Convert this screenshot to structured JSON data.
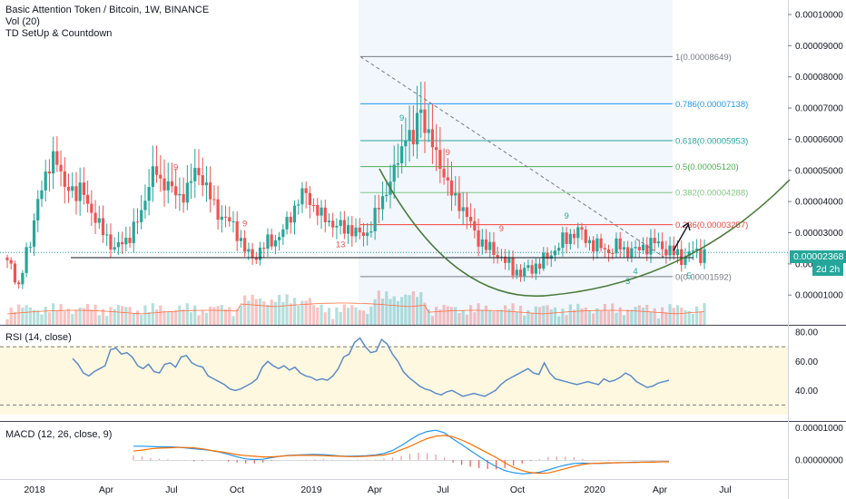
{
  "header": {
    "title": "Basic Attention Token / Bitcoin, 1W, BINANCE",
    "indicators": [
      "Vol (20)",
      "TD SetUp & Countdown"
    ]
  },
  "panes": {
    "rsi_label": "RSI (14, close)",
    "macd_label": "MACD (12, 26, close, 9)"
  },
  "price_badge": {
    "value": "0.00002368",
    "timer": "2d 2h"
  },
  "colors": {
    "up": "#26a69a",
    "down": "#ef5350",
    "fib_band": "#e3f2fd",
    "arc": "#4a7a3a"
  },
  "chart_data": [
    {
      "type": "candlestick",
      "title": "Basic Attention Token / Bitcoin, 1W, BINANCE",
      "xlabel": "",
      "ylabel": "",
      "x_ticks": [
        "2018",
        "Apr",
        "Jul",
        "Oct",
        "2019",
        "Apr",
        "Jul",
        "Oct",
        "2020",
        "Apr",
        "Jul"
      ],
      "y_ticks": [
        "0.00010000",
        "0.00009000",
        "0.00008000",
        "0.00007000",
        "0.00006000",
        "0.00005000",
        "0.00004000",
        "0.00003000",
        "0.00002000",
        "0.00001000"
      ],
      "ylim": [
        5.5e-06,
        0.00010435
      ],
      "close_path": [
        2e-05,
        1.85e-05,
        1.25e-05,
        2.1e-05,
        2.6e-05,
        3.9e-05,
        4.4e-05,
        4.8e-05,
        5.6e-05,
        5.2e-05,
        4.3e-05,
        4.6e-05,
        4.2e-05,
        4.4e-05,
        4e-05,
        3.6e-05,
        3.2e-05,
        3e-05,
        2.7e-05,
        2.4e-05,
        2.7e-05,
        2.8e-05,
        3.1e-05,
        3.4e-05,
        4e-05,
        4.8e-05,
        5e-05,
        4.5e-05,
        4.7e-05,
        4.3e-05,
        4.1e-05,
        4.3e-05,
        4.6e-05,
        5e-05,
        4.8e-05,
        4.4e-05,
        3.9e-05,
        3.6e-05,
        3.5e-05,
        3.3e-05,
        3.1e-05,
        2.7e-05,
        2.3e-05,
        2.2e-05,
        2.4e-05,
        2.6e-05,
        2.7e-05,
        2.8e-05,
        3e-05,
        3.3e-05,
        3.7e-05,
        4.1e-05,
        4.3e-05,
        4e-05,
        3.8e-05,
        3.5e-05,
        3.4e-05,
        3.3e-05,
        3.2e-05,
        3.1e-05,
        3.2e-05,
        3e-05,
        2.9e-05,
        3e-05,
        3.4e-05,
        3.8e-05,
        4.2e-05,
        4.7e-05,
        5.1e-05,
        5.6e-05,
        6.5e-05,
        5.7e-05,
        7.2e-05,
        6.5e-05,
        6e-05,
        5.5e-05,
        5.1e-05,
        4.6e-05,
        4.1e-05,
        4e-05,
        3.7e-05,
        3.3e-05,
        2.9e-05,
        2.7e-05,
        2.5e-05,
        2.4e-05,
        2.3e-05,
        2.1e-05,
        1.9e-05,
        1.8e-05,
        1.7e-05,
        1.8e-05,
        1.9e-05,
        2e-05,
        2.1e-05,
        2.3e-05,
        2.5e-05,
        2.7e-05,
        2.8e-05,
        3e-05,
        3.1e-05,
        2.8e-05,
        2.7e-05,
        2.6e-05,
        2.5e-05,
        2.4e-05,
        2.5e-05,
        2.6e-05,
        2.4e-05,
        2.5e-05,
        2.4e-05,
        2.5e-05,
        2.6e-05,
        2.7e-05,
        2.6e-05,
        2.5e-05,
        2.4e-05,
        2.3e-05,
        2.2e-05,
        2.3e-05,
        2.4e-05,
        2.3e-05,
        2.36e-05
      ],
      "last_price": 2.368e-05,
      "support_level": 2.2e-05,
      "fibonacci": [
        {
          "label": "1(0.00008649)",
          "level": 8.649e-05,
          "color": "#787b86"
        },
        {
          "label": "0.786(0.00007138)",
          "level": 7.138e-05,
          "color": "#2196f3"
        },
        {
          "label": "0.618(0.00005953)",
          "level": 5.953e-05,
          "color": "#26a69a"
        },
        {
          "label": "0.5(0.00005120)",
          "level": 5.12e-05,
          "color": "#4caf50"
        },
        {
          "label": "0.382(0.00004288)",
          "level": 4.288e-05,
          "color": "#81c784"
        },
        {
          "label": "0.236(0.00003257)",
          "level": 3.257e-05,
          "color": "#f44336"
        },
        {
          "label": "0(0.00001592)",
          "level": 1.592e-05,
          "color": "#787b86"
        }
      ],
      "td_marks": [
        {
          "text": "9",
          "i": 44,
          "pos": "above",
          "color": "#ef5350"
        },
        {
          "text": "9",
          "i": 62,
          "pos": "above",
          "color": "#ef5350"
        },
        {
          "text": "13",
          "i": 87,
          "pos": "below",
          "color": "#ef5350"
        },
        {
          "text": "9",
          "i": 103,
          "pos": "above",
          "color": "#26a69a"
        },
        {
          "text": "9",
          "i": 115,
          "pos": "above",
          "color": "#ef5350"
        },
        {
          "text": "9",
          "i": 129,
          "pos": "above",
          "color": "#ef5350"
        },
        {
          "text": "9",
          "i": 146,
          "pos": "above",
          "color": "#26a69a"
        },
        {
          "text": "3",
          "i": 162,
          "pos": "below",
          "color": "#26a69a"
        },
        {
          "text": "4",
          "i": 164,
          "pos": "below",
          "color": "#26a69a"
        },
        {
          "text": "5",
          "i": 178,
          "pos": "below",
          "color": "#26a69a"
        }
      ]
    },
    {
      "type": "line",
      "title": "RSI (14, close)",
      "y_ticks": [
        "80.00",
        "60.00",
        "40.00"
      ],
      "ylim": [
        24,
        82
      ],
      "bands": [
        70,
        30
      ],
      "values": [
        62,
        58,
        52,
        50,
        53,
        55,
        57,
        68,
        69,
        65,
        66,
        63,
        57,
        55,
        58,
        53,
        52,
        58,
        59,
        56,
        63,
        64,
        59,
        57,
        56,
        50,
        48,
        46,
        44,
        41,
        40,
        41,
        43,
        45,
        48,
        56,
        60,
        57,
        55,
        57,
        54,
        56,
        52,
        50,
        49,
        47,
        48,
        47,
        50,
        55,
        63,
        65,
        73,
        76,
        70,
        66,
        67,
        75,
        72,
        65,
        60,
        53,
        49,
        46,
        43,
        41,
        40,
        38,
        37,
        39,
        40,
        38,
        36,
        37,
        38,
        37,
        36,
        38,
        40,
        44,
        47,
        49,
        51,
        53,
        55,
        52,
        51,
        59,
        52,
        48,
        47,
        46,
        45,
        44,
        45,
        46,
        45,
        44,
        48,
        46,
        47,
        49,
        52,
        50,
        46,
        44,
        42,
        43,
        45,
        46,
        47
      ]
    },
    {
      "type": "line",
      "title": "MACD (12, 26, close, 9)",
      "y_ticks": [
        "0.00001000",
        "0.00000000"
      ],
      "ylim": [
        -5.5e-06,
        1.12e-05
      ],
      "series": [
        {
          "name": "",
          "values": [
            4.3e-06,
            4.3e-06,
            4.2e-06,
            4.1e-06,
            4.1e-06,
            4e-06,
            3.8e-06,
            3.5e-06,
            3.3e-06,
            3e-06,
            2.5e-06,
            1.8e-06,
            1e-06,
            4e-07,
            2e-07,
            3e-07,
            8e-07,
            1.2e-06,
            1.5e-06,
            1.6e-06,
            1.7e-06,
            1.8e-06,
            1.7e-06,
            1.5e-06,
            1.3e-06,
            1.2e-06,
            1.3e-06,
            1.4e-06,
            1.6e-06,
            2.1e-06,
            3e-06,
            4.5e-06,
            6.2e-06,
            7.8e-06,
            8.8e-06,
            9.2e-06,
            8.4e-06,
            6.5e-06,
            4.8e-06,
            3e-06,
            1.2e-06,
            -5e-07,
            -2e-06,
            -3.2e-06,
            -3.8e-06,
            -4.2e-06,
            -4e-06,
            -3.7e-06,
            -3e-06,
            -2.2e-06,
            -1.5e-06,
            -1e-06,
            -9e-07,
            -1e-06,
            -1e-06,
            -9e-07,
            -7e-07,
            -7e-07,
            -6e-07,
            -6e-07,
            -5e-07,
            -5e-07,
            -4e-07
          ]
        },
        {
          "name": "",
          "values": [
            2.8e-06,
            3.1e-06,
            3.5e-06,
            3.7e-06,
            3.8e-06,
            3.9e-06,
            3.9e-06,
            3.8e-06,
            3.5e-06,
            3e-06,
            2.6e-06,
            2.2e-06,
            1.7e-06,
            1.4e-06,
            1.2e-06,
            1e-06,
            1e-06,
            1.2e-06,
            1.4e-06,
            1.5e-06,
            1.5e-06,
            1.5e-06,
            1.4e-06,
            1.3e-06,
            1.2e-06,
            1.1e-06,
            1.1e-06,
            1.2e-06,
            1.4e-06,
            1.6e-06,
            2.2e-06,
            3.2e-06,
            4.2e-06,
            5.5e-06,
            6.6e-06,
            7.4e-06,
            7.6e-06,
            7.2e-06,
            6.2e-06,
            5e-06,
            3.6e-06,
            2.2e-06,
            8e-07,
            -8e-07,
            -2.2e-06,
            -3.2e-06,
            -3.8e-06,
            -4e-06,
            -3.9e-06,
            -3.3e-06,
            -2.6e-06,
            -1.9e-06,
            -1.3e-06,
            -1e-06,
            -9e-07,
            -8e-07,
            -8e-07,
            -7e-07,
            -7e-07,
            -6e-07,
            -6e-07,
            -5e-07,
            -5e-07
          ]
        }
      ]
    }
  ]
}
